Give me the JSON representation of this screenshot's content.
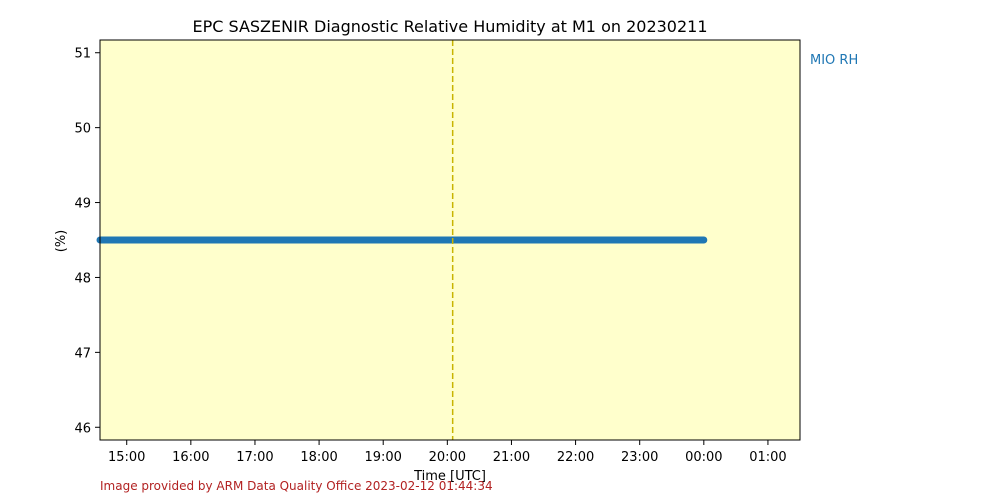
{
  "chart_data": {
    "type": "line",
    "title": "EPC SASZENIR Diagnostic Relative Humidity at M1 on 20230211",
    "xlabel": "Time [UTC]",
    "ylabel": "(%)",
    "x_ticks": [
      "15:00",
      "16:00",
      "17:00",
      "18:00",
      "19:00",
      "20:00",
      "21:00",
      "22:00",
      "23:00",
      "00:00",
      "01:00"
    ],
    "y_ticks": [
      46,
      47,
      48,
      49,
      50,
      51
    ],
    "xlim": [
      "2023-02-11 14:35",
      "2023-02-12 01:30"
    ],
    "ylim": [
      45.83,
      51.17
    ],
    "grid": false,
    "background_color": "#ffffcc",
    "series": [
      {
        "name": "MIO RH",
        "color": "#1f77b4",
        "x": [
          "2023-02-11 14:35",
          "2023-02-12 00:00"
        ],
        "y": [
          48.5,
          48.5
        ]
      }
    ],
    "annotations": {
      "vertical_line": {
        "x": "2023-02-11 20:05",
        "color": "#c8b400",
        "style": "dashed"
      }
    },
    "legend": {
      "placement": "outside-right"
    }
  },
  "credit": {
    "text": "Image provided by ARM Data Quality Office 2023-02-12 01:44:34",
    "color": "#b22222"
  }
}
